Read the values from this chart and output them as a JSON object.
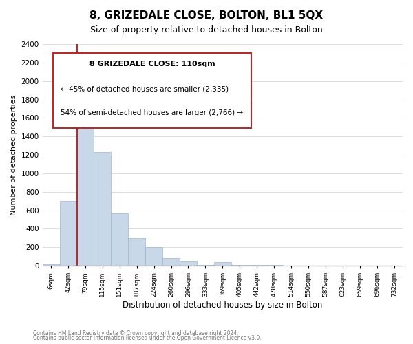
{
  "title": "8, GRIZEDALE CLOSE, BOLTON, BL1 5QX",
  "subtitle": "Size of property relative to detached houses in Bolton",
  "xlabel": "Distribution of detached houses by size in Bolton",
  "ylabel": "Number of detached properties",
  "bar_color": "#c8d8e8",
  "bar_edge_color": "#a0b8d0",
  "bin_labels": [
    "6sqm",
    "42sqm",
    "79sqm",
    "115sqm",
    "151sqm",
    "187sqm",
    "224sqm",
    "260sqm",
    "296sqm",
    "333sqm",
    "369sqm",
    "405sqm",
    "442sqm",
    "478sqm",
    "514sqm",
    "550sqm",
    "587sqm",
    "623sqm",
    "659sqm",
    "696sqm",
    "732sqm"
  ],
  "bin_values": [
    15,
    700,
    1940,
    1230,
    570,
    300,
    200,
    80,
    45,
    10,
    35,
    5,
    10,
    5,
    0,
    0,
    0,
    0,
    0,
    0,
    0
  ],
  "property_line_x": 2.0,
  "property_line_label": "8 GRIZEDALE CLOSE: 110sqm",
  "annotation_line1": "← 45% of detached houses are smaller (2,335)",
  "annotation_line2": "54% of semi-detached houses are larger (2,766) →",
  "ylim": [
    0,
    2400
  ],
  "yticks": [
    0,
    200,
    400,
    600,
    800,
    1000,
    1200,
    1400,
    1600,
    1800,
    2000,
    2200,
    2400
  ],
  "vline_color": "#cc2222",
  "box_edge_color": "#cc2222",
  "footnote1": "Contains HM Land Registry data © Crown copyright and database right 2024.",
  "footnote2": "Contains public sector information licensed under the Open Government Licence v3.0.",
  "background_color": "#ffffff",
  "grid_color": "#dddddd"
}
